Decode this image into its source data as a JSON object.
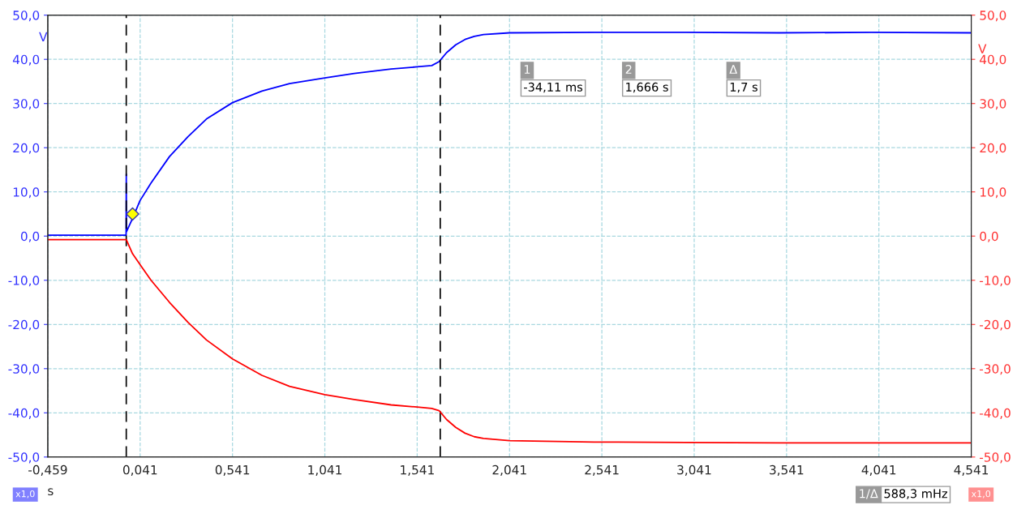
{
  "chart_data": {
    "type": "line",
    "xlabel": "s",
    "ylabel": "V",
    "y2label": "V",
    "xlim": [
      -0.459,
      4.541
    ],
    "xticks": [
      {
        "value": -0.459,
        "label": "-0,459"
      },
      {
        "value": 0.041,
        "label": "0,041"
      },
      {
        "value": 0.541,
        "label": "0,541"
      },
      {
        "value": 1.041,
        "label": "1,041"
      },
      {
        "value": 1.541,
        "label": "1,541"
      },
      {
        "value": 2.041,
        "label": "2,041"
      },
      {
        "value": 2.541,
        "label": "2,541"
      },
      {
        "value": 3.041,
        "label": "3,041"
      },
      {
        "value": 3.541,
        "label": "3,541"
      },
      {
        "value": 4.041,
        "label": "4,041"
      },
      {
        "value": 4.541,
        "label": "4,541"
      }
    ],
    "ylim": [
      -50,
      50
    ],
    "yticks": [
      {
        "value": -50,
        "label": "-50,0"
      },
      {
        "value": -40,
        "label": "-40,0"
      },
      {
        "value": -30,
        "label": "-30,0"
      },
      {
        "value": -20,
        "label": "-20,0"
      },
      {
        "value": -10,
        "label": "-10,0"
      },
      {
        "value": 0,
        "label": "0,0"
      },
      {
        "value": 10,
        "label": "10,0"
      },
      {
        "value": 20,
        "label": "20,0"
      },
      {
        "value": 30,
        "label": "30,0"
      },
      {
        "value": 40,
        "label": "40,0"
      },
      {
        "value": 50,
        "label": "50,0"
      }
    ],
    "y2lim": [
      -50,
      50
    ],
    "y2ticks": [
      {
        "value": -50,
        "label": "-50,0"
      },
      {
        "value": -40,
        "label": "-40,0"
      },
      {
        "value": -30,
        "label": "-30,0"
      },
      {
        "value": -20,
        "label": "-20,0"
      },
      {
        "value": -10,
        "label": "-10,0"
      },
      {
        "value": 0,
        "label": "0,0"
      },
      {
        "value": 10,
        "label": "10,0"
      },
      {
        "value": 20,
        "label": "20,0"
      },
      {
        "value": 30,
        "label": "30,0"
      },
      {
        "value": 40,
        "label": "40,0"
      },
      {
        "value": 50,
        "label": "50,0"
      }
    ],
    "grid": true,
    "series": [
      {
        "color": "#0000ff",
        "x": [
          -0.459,
          -0.3,
          -0.1,
          -0.035,
          -0.034,
          -0.033,
          0.0,
          0.04,
          0.1,
          0.2,
          0.3,
          0.4,
          0.541,
          0.7,
          0.85,
          1.041,
          1.2,
          1.4,
          1.541,
          1.62,
          1.66,
          1.7,
          1.75,
          1.8,
          1.85,
          1.9,
          2.041,
          2.5,
          3.0,
          3.5,
          4.0,
          4.541
        ],
        "values": [
          0.2,
          0.2,
          0.2,
          0.2,
          14,
          1,
          4,
          8,
          12,
          18,
          22.5,
          26.5,
          30.2,
          32.8,
          34.5,
          35.8,
          36.8,
          37.8,
          38.3,
          38.6,
          39.5,
          41.5,
          43.3,
          44.5,
          45.2,
          45.6,
          46.0,
          46.1,
          46.1,
          46.0,
          46.1,
          46.0
        ]
      },
      {
        "color": "#ff0000",
        "axis": "y2",
        "x": [
          -0.459,
          -0.3,
          -0.1,
          -0.034,
          0.0,
          0.05,
          0.1,
          0.2,
          0.3,
          0.4,
          0.541,
          0.7,
          0.85,
          1.041,
          1.2,
          1.4,
          1.541,
          1.62,
          1.66,
          1.7,
          1.75,
          1.8,
          1.85,
          1.9,
          2.041,
          2.5,
          3.0,
          3.5,
          4.0,
          4.541
        ],
        "values": [
          -0.8,
          -0.8,
          -0.8,
          -0.8,
          -4,
          -7,
          -10,
          -15,
          -19.5,
          -23.5,
          -27.8,
          -31.5,
          -34,
          -35.9,
          -37,
          -38.2,
          -38.7,
          -39.0,
          -39.5,
          -41.5,
          -43.3,
          -44.6,
          -45.4,
          -45.8,
          -46.3,
          -46.6,
          -46.7,
          -46.8,
          -46.8,
          -46.8
        ]
      },
      {
        "type": "scatter",
        "color": "#ffff00",
        "marker": "diamond",
        "x": [
          0.0
        ],
        "values": [
          5
        ]
      }
    ],
    "ref_lines": [
      {
        "axis": "x",
        "value": -0.03411,
        "color": "#000000",
        "line_style": "dashed"
      },
      {
        "axis": "x",
        "value": 1.666,
        "color": "#000000",
        "line_style": "dashed"
      }
    ],
    "annotations": [
      "1",
      "2",
      "Δ",
      "-34,11 ms",
      "1,666 s",
      "1,7 s",
      "1/Δ",
      "588,3 mHz",
      "x1,0",
      "x1,0"
    ]
  }
}
